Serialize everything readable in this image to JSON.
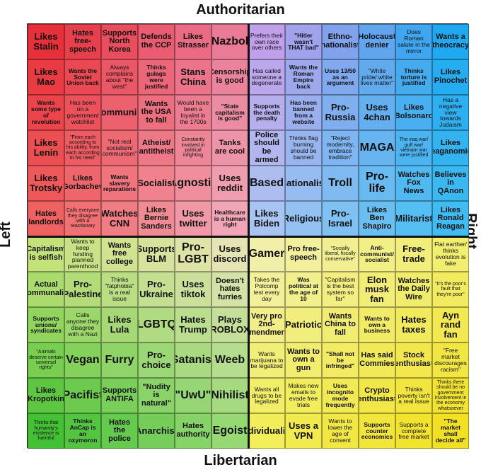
{
  "axes": {
    "top": "Authoritarian",
    "bottom": "Libertarian",
    "left": "Left",
    "right": "Right"
  },
  "grid": {
    "rows": [
      [
        "Likes Stalin",
        "Hates free-speech",
        "Supports North Korea",
        "Defends the CCP",
        "Likes Strasser",
        "Nazbol",
        "Prefers their own race over others",
        "\"Hitler wasn't THAT bad\"",
        "Ethno-nationalist",
        "Holocaust denier",
        "Does Roman salute in the mirror",
        "Wants a theocracy"
      ],
      [
        "Likes Mao",
        "Wants the Soviet Union back",
        "Always complains about \"the west\"",
        "Thinks gulags were justified",
        "Stans China",
        "Censorship is good",
        "Has called someone a degenerate",
        "Wants the Roman Empire back",
        "Uses 13/50 as an argument",
        "\"White pride/ white lives matter\"",
        "Thinks torture is justified",
        "Likes Pinochet"
      ],
      [
        "Wants some type of revolution",
        "Has been on a government watchlist",
        "Communist",
        "Wants the USA to fall",
        "Would have been a loyalist in the 1700s",
        "\"State capitalism is good\"",
        "Supports the death penalty",
        "Has been banned from a website",
        "Pro-Russia",
        "Uses 4chan",
        "Likes Bolsonaro",
        "Has a negative view towards Judaism"
      ],
      [
        "Likes Lenin",
        "\"From each according to his ability, from each according to his need\"",
        "\"Not real socialism/ communism\"",
        "Atheist/ antitheist",
        "Constantly involved in political infighting",
        "Tanks are cool",
        "Police should be armed",
        "Thinks flag burning should be banned",
        "\"Reject modernity, embrace tradition\"",
        "MAGA",
        "The iraq war/ gulf war/ vietnam war were justified",
        "Likes Reaganomics"
      ],
      [
        "Likes Trotsky",
        "Likes Gorbachev",
        "Wants slavery reparations",
        "Socialist",
        "Agnostic",
        "Uses reddit",
        "\"Based\"",
        "Nationalist",
        "Troll",
        "Pro-life",
        "Watches Fox News",
        "Believes in QAnon"
      ],
      [
        "Hates landlords",
        "Calls everyone they disagree with a reactionary",
        "Watches CNN",
        "Likes Bernie Sanders",
        "Uses twitter",
        "Healthcare is a human right",
        "Likes Biden",
        "Religious",
        "Pro-Israel",
        "Likes Ben Shapiro",
        "Militarist",
        "Likes Ronald Reagan"
      ],
      [
        "Capitalism is selfish",
        "Wants to keep funding planned parenthood",
        "Wants free college",
        "Supports BLM",
        "Pro-LGBT",
        "Uses discord",
        "Gamer",
        "Pro free-speech",
        "\"Socially liberal, fiscally conservative\"",
        "Anti-communist/ socialist",
        "Free-trade",
        "Flat earther/ thinks evolution is fake"
      ],
      [
        "Actual Communalist",
        "Pro-Palestine",
        "Thinks \"fatphobia\" is a real issue",
        "Pro-Ukraine",
        "Uses tiktok",
        "Doesn't hates furries",
        "Takes the Polcomp test every day",
        "Was political at the age of 10",
        "\"Capitalism is the best system so far\"",
        "Elon musk fan",
        "Watches the Daily Wire",
        "\"It's the poor's fault that they're poor\""
      ],
      [
        "Supports unions/ syndicates",
        "Calls anyone they disagree with a Nazi",
        "Likes Lula",
        "LGBTQ",
        "Hates Trump",
        "Plays ROBLOX",
        "Very pro 2nd-amendment",
        "Patriotic",
        "Wants China to fall",
        "Wants to own a business",
        "Hates taxes",
        "Ayn rand fan"
      ],
      [
        "\"Animals deserve certain universal rights\"",
        "Vegan",
        "Furry",
        "Pro-choice",
        "Satanist",
        "Weeb",
        "Wants marijuana to be legalized",
        "Wants to own a gun",
        "\"Shall not be infringed\"",
        "Has said \"Commies\"",
        "Stock enthusiast",
        "\"Free market discourages racism\""
      ],
      [
        "Likes Kropotkin",
        "Pacifist",
        "Supports ANTIFA",
        "\"Nudity is natural\"",
        "\"UwU\"",
        "Nihilist",
        "Wants all drugs to be legalized",
        "Makes new emails to evade free trials",
        "Uses incognito mode frequently",
        "Crypto enthusiast",
        "Thinks poverty isn't a real issue",
        "Thinks there should be no government involvement in the economy whatsoever"
      ],
      [
        "Thinks that humanity's existence is harmful",
        "Thinks AnCap is an oxymoron",
        "Hates the police",
        "Anarchist",
        "Hates authority",
        "Egoist",
        "Individualist",
        "Uses a VPN",
        "Wants to lower the age of consent",
        "Supports counter economics",
        "Supports a complete free market",
        "\"The market shall decide all\""
      ]
    ]
  }
}
